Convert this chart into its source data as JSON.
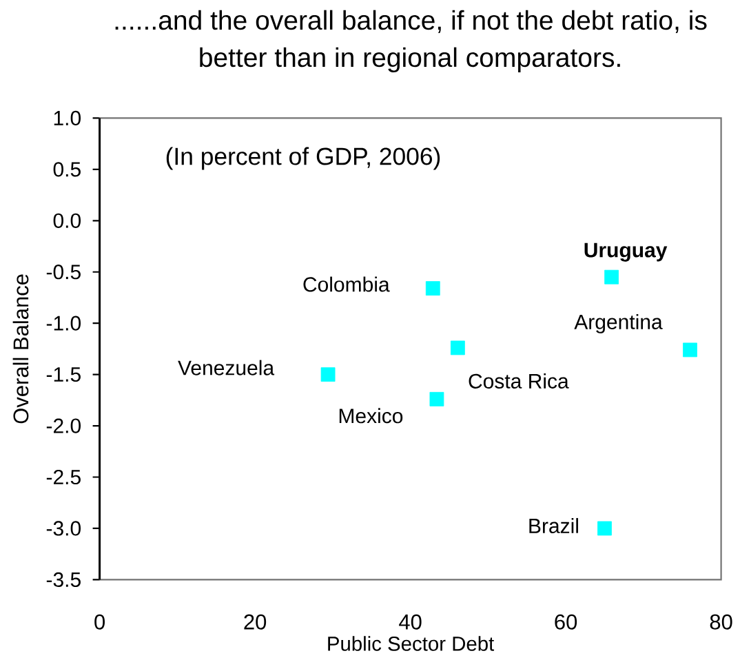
{
  "chart_data": {
    "type": "scatter",
    "title": "......and the overall balance, if not the debt ratio, is better than in regional comparators.",
    "subtitle": "(In percent of GDP, 2006)",
    "xlabel": "Public Sector Debt",
    "ylabel": "Overall Balance",
    "marker": "square",
    "series": [
      {
        "name": "Venezuela",
        "color": "#00ffff",
        "x": [
          29.4
        ],
        "values": [
          -1.5
        ]
      },
      {
        "name": "Colombia",
        "color": "#00ffff",
        "x": [
          42.9
        ],
        "values": [
          -0.66
        ]
      },
      {
        "name": "Mexico",
        "color": "#00ffff",
        "x": [
          43.4
        ],
        "values": [
          -1.74
        ]
      },
      {
        "name": "Costa Rica",
        "color": "#00ffff",
        "x": [
          46.1
        ],
        "values": [
          -1.24
        ]
      },
      {
        "name": "Brazil",
        "color": "#00ffff",
        "x": [
          65.0
        ],
        "values": [
          -3.0
        ]
      },
      {
        "name": "**Uruguay**",
        "color": "#00ffff",
        "x": [
          65.9
        ],
        "values": [
          -0.55
        ]
      },
      {
        "name": "Argentina",
        "color": "#00ffff",
        "x": [
          76.0
        ],
        "values": [
          -1.26
        ]
      }
    ],
    "xlim": [
      0,
      80
    ],
    "ylim": [
      -3.5,
      1.0
    ],
    "xticks": [
      0,
      20,
      40,
      60,
      80
    ],
    "yticks": [
      {
        "value": -3.5,
        "label": "-3.5"
      },
      {
        "value": -3.0,
        "label": "-3.0"
      },
      {
        "value": -2.5,
        "label": "-2.5"
      },
      {
        "value": -2.0,
        "label": "-2.0"
      },
      {
        "value": -1.5,
        "label": "-1.5"
      },
      {
        "value": -1.0,
        "label": "-1.0"
      },
      {
        "value": -0.5,
        "label": "-0.5"
      },
      {
        "value": 0.0,
        "label": "0.0"
      },
      {
        "value": 0.5,
        "label": "0.5"
      },
      {
        "value": 1.0,
        "label": "1.0"
      }
    ]
  }
}
